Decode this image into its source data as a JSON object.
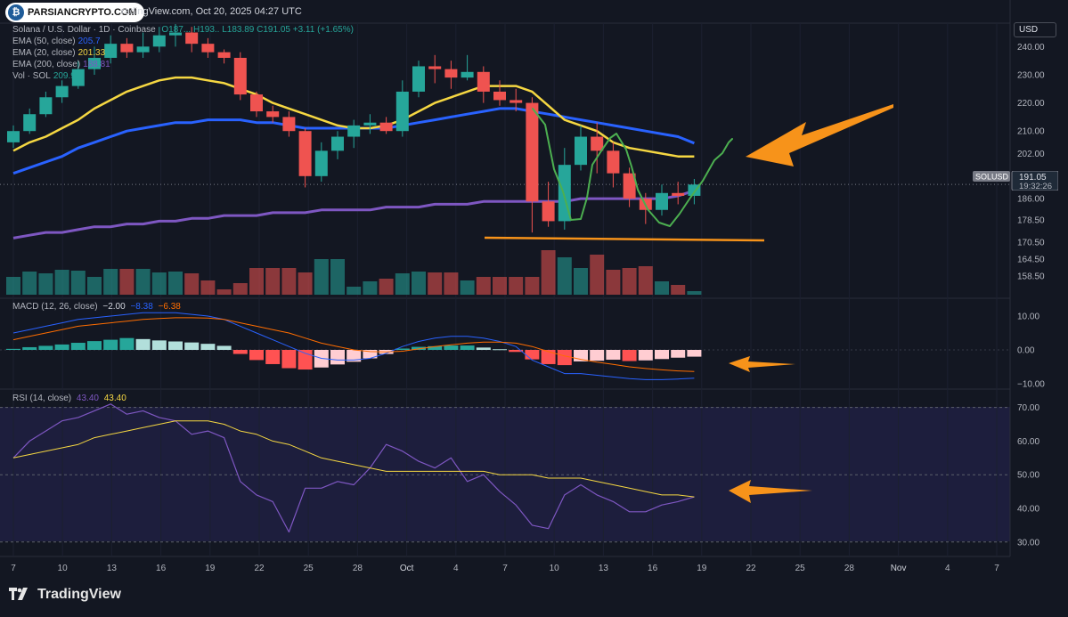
{
  "header": {
    "logo_text": "PARSIANCRYPTO.COM",
    "published": "radingView.com, Oct 20, 2025 04:27 UTC"
  },
  "currency": "USD",
  "legend": {
    "symbol": "Solana / U.S. Dollar · 1D · Coinbase",
    "ohlc": "O187... H193.. L183.89 C191.05 +3.11 (+1.65%)",
    "ema50": "EMA (50, close)",
    "ema50_val": "205.7",
    "ema20": "EMA (20, close)",
    "ema20_val": "201.33",
    "ema200": "EMA (200, close)",
    "ema200_val": "188.81",
    "vol": "Vol · SOL",
    "vol_val": "209.9"
  },
  "price_tag": {
    "symbol": "SOLUSD",
    "price": "191.05",
    "countdown": "19:32:26"
  },
  "macd": {
    "label": "MACD (12, 26, close)",
    "hist_val": "−2.00",
    "macd_val": "−8.38",
    "signal_val": "−6.38"
  },
  "rsi": {
    "label": "RSI (14, close)",
    "rsi_val": "43.40",
    "ma_val": "43.40"
  },
  "footer_brand": "TradingView",
  "colors": {
    "up": "#26a69a",
    "down": "#ef5350",
    "ema20": "#f5d742",
    "ema50": "#2962ff",
    "ema200": "#7e57c2",
    "annotation": "#f7931a",
    "path": "#4caf50"
  },
  "chart_data": {
    "type": "candlestick",
    "title": "Solana / U.S. Dollar · 1D · Coinbase",
    "price_axis": [
      "240.00",
      "230.00",
      "220.00",
      "210.00",
      "202.00",
      "194.00",
      "186.00",
      "178.50",
      "170.50",
      "164.50",
      "158.50"
    ],
    "ylim": [
      155,
      242
    ],
    "current_price": 191.05,
    "x_ticks": [
      "7",
      "10",
      "13",
      "16",
      "19",
      "22",
      "25",
      "28",
      "Oct",
      "4",
      "7",
      "10",
      "13",
      "16",
      "19",
      "22",
      "25",
      "28",
      "Nov",
      "4",
      "7"
    ],
    "dates": [
      "Sep 8",
      "Sep 9",
      "Sep 10",
      "Sep 11",
      "Sep 12",
      "Sep 13",
      "Sep 14",
      "Sep 15",
      "Sep 16",
      "Sep 17",
      "Sep 18",
      "Sep 19",
      "Sep 20",
      "Sep 21",
      "Sep 22",
      "Sep 23",
      "Sep 24",
      "Sep 25",
      "Sep 26",
      "Sep 27",
      "Sep 28",
      "Sep 29",
      "Sep 30",
      "Oct 1",
      "Oct 2",
      "Oct 3",
      "Oct 4",
      "Oct 5",
      "Oct 6",
      "Oct 7",
      "Oct 8",
      "Oct 9",
      "Oct 10",
      "Oct 11",
      "Oct 12",
      "Oct 13",
      "Oct 14",
      "Oct 15",
      "Oct 16",
      "Oct 17",
      "Oct 18",
      "Oct 19",
      "Oct 20"
    ],
    "candles": [
      [
        206,
        210,
        204,
        212
      ],
      [
        210,
        216,
        209,
        218
      ],
      [
        216,
        222,
        215,
        224
      ],
      [
        222,
        226,
        220,
        228
      ],
      [
        226,
        232,
        225,
        235
      ],
      [
        232,
        236,
        230,
        240
      ],
      [
        236,
        241,
        234,
        244
      ],
      [
        241,
        238,
        236,
        243
      ],
      [
        238,
        240,
        236,
        245
      ],
      [
        240,
        244,
        238,
        247
      ],
      [
        244,
        245,
        240,
        248
      ],
      [
        245,
        241,
        238,
        247
      ],
      [
        241,
        238,
        236,
        243
      ],
      [
        238,
        236,
        234,
        239
      ],
      [
        236,
        223,
        221,
        238
      ],
      [
        223,
        217,
        215,
        224
      ],
      [
        217,
        215,
        213,
        219
      ],
      [
        215,
        210,
        208,
        217
      ],
      [
        210,
        194,
        190,
        211
      ],
      [
        194,
        203,
        192,
        206
      ],
      [
        203,
        208,
        200,
        210
      ],
      [
        208,
        212,
        204,
        214
      ],
      [
        212,
        213,
        209,
        216
      ],
      [
        213,
        210,
        209,
        215
      ],
      [
        210,
        224,
        208,
        228
      ],
      [
        224,
        233,
        222,
        235
      ],
      [
        233,
        232,
        227,
        237
      ],
      [
        232,
        229,
        225,
        235
      ],
      [
        229,
        231,
        228,
        237
      ],
      [
        231,
        224,
        220,
        233
      ],
      [
        224,
        221,
        219,
        228
      ],
      [
        221,
        220,
        217,
        225
      ],
      [
        220,
        185,
        174,
        222
      ],
      [
        185,
        178,
        176,
        192
      ],
      [
        178,
        198,
        175,
        204
      ],
      [
        198,
        208,
        196,
        212
      ],
      [
        208,
        203,
        195,
        213
      ],
      [
        203,
        195,
        190,
        206
      ],
      [
        195,
        186,
        183,
        197
      ],
      [
        186,
        182,
        177,
        188
      ],
      [
        182,
        188,
        180,
        191
      ],
      [
        188,
        187,
        184,
        192
      ],
      [
        187,
        191,
        184,
        193
      ]
    ],
    "volume": [
      20,
      26,
      24,
      28,
      27,
      20,
      29,
      29,
      29,
      25,
      26,
      24,
      16,
      6,
      13,
      30,
      30,
      30,
      25,
      40,
      40,
      9,
      15,
      18,
      24,
      26,
      25,
      25,
      16,
      20,
      20,
      20,
      20,
      50,
      42,
      30,
      45,
      28,
      30,
      32,
      15,
      11,
      4
    ],
    "ema20": [
      203,
      206,
      208,
      211,
      214,
      218,
      221,
      224,
      226,
      228,
      229,
      229,
      228,
      227,
      225,
      223,
      220,
      218,
      216,
      214,
      212,
      211,
      211,
      212,
      214,
      217,
      220,
      222,
      224,
      226,
      226,
      226,
      224,
      219,
      214,
      212,
      210,
      206,
      204,
      203,
      202,
      201,
      201
    ],
    "ema50": [
      195,
      197,
      199,
      201,
      204,
      206,
      208,
      210,
      211,
      212,
      213,
      213,
      214,
      214,
      214,
      213,
      213,
      212,
      211,
      211,
      211,
      211,
      211,
      211,
      212,
      213,
      214,
      215,
      216,
      217,
      218,
      218,
      217,
      216,
      215,
      214,
      213,
      212,
      211,
      210,
      209,
      208,
      205.7
    ],
    "ema200": [
      172,
      173,
      174,
      174,
      175,
      176,
      176,
      177,
      177,
      178,
      178,
      179,
      179,
      180,
      180,
      180,
      181,
      181,
      181,
      182,
      182,
      182,
      182,
      183,
      183,
      183,
      184,
      184,
      184,
      185,
      185,
      185,
      185,
      185,
      185,
      186,
      186,
      186,
      186,
      186,
      186,
      187,
      188.81
    ],
    "macd": {
      "ylim": [
        -12,
        14
      ],
      "ticks": [
        "10.00",
        "0.00",
        "−10.00"
      ],
      "histogram": [
        0.3,
        0.8,
        1.2,
        1.6,
        2.1,
        2.6,
        3.0,
        3.5,
        3.2,
        2.8,
        2.5,
        2.2,
        1.8,
        1.2,
        -1.2,
        -3.0,
        -4.2,
        -5.4,
        -5.8,
        -5.2,
        -4.3,
        -3.5,
        -2.5,
        -1.2,
        0.4,
        0.9,
        1.1,
        1.3,
        1.3,
        0.7,
        0.2,
        -0.6,
        -2.8,
        -4.2,
        -4.5,
        -3.4,
        -3.2,
        -2.9,
        -3.3,
        -3.1,
        -2.7,
        -2.3,
        -2.0
      ],
      "macd": [
        5,
        6,
        7,
        8,
        9,
        9.5,
        10,
        10.5,
        11,
        11,
        11,
        10.5,
        10,
        9,
        7,
        5,
        3,
        1,
        -1,
        -2.5,
        -3,
        -3,
        -2.5,
        -1,
        1,
        2.5,
        3.5,
        4,
        4,
        3.5,
        2.5,
        1,
        -3,
        -5,
        -7,
        -7,
        -7.5,
        -8,
        -8.5,
        -8.8,
        -8.8,
        -8.6,
        -8.38
      ],
      "signal": [
        3,
        4,
        5,
        6,
        7,
        7.5,
        8,
        8.5,
        9,
        9.3,
        9.5,
        9.5,
        9.4,
        9,
        8,
        7,
        6,
        5,
        3.5,
        2,
        1,
        0,
        -0.5,
        -0.6,
        -0.4,
        0.3,
        1,
        1.5,
        2,
        2.3,
        2.3,
        2,
        1,
        -0.5,
        -1.8,
        -2.8,
        -3.6,
        -4.3,
        -5,
        -5.5,
        -5.9,
        -6.2,
        -6.38
      ]
    },
    "rsi": {
      "ylim": [
        27,
        73
      ],
      "ticks": [
        "70.00",
        "60.00",
        "50.00",
        "40.00",
        "30.00"
      ],
      "rsi": [
        55,
        60,
        63,
        66,
        67,
        69,
        71,
        68,
        69,
        67,
        66,
        62,
        63,
        61,
        48,
        44,
        42,
        33,
        46,
        46,
        48,
        47,
        52,
        59,
        57,
        54,
        52,
        55,
        48,
        50,
        45,
        41,
        35,
        34,
        44,
        47,
        44,
        42,
        39,
        39,
        41,
        42,
        43.4
      ],
      "ma": [
        55,
        56,
        57,
        58,
        59,
        61,
        62,
        63,
        64,
        65,
        66,
        66,
        66,
        65,
        63,
        62,
        60,
        59,
        57,
        55,
        54,
        53,
        52,
        51,
        51,
        51,
        51,
        51,
        51,
        51,
        50,
        50,
        50,
        49,
        49,
        49,
        48,
        47,
        46,
        45,
        44,
        44,
        43.4
      ]
    }
  }
}
